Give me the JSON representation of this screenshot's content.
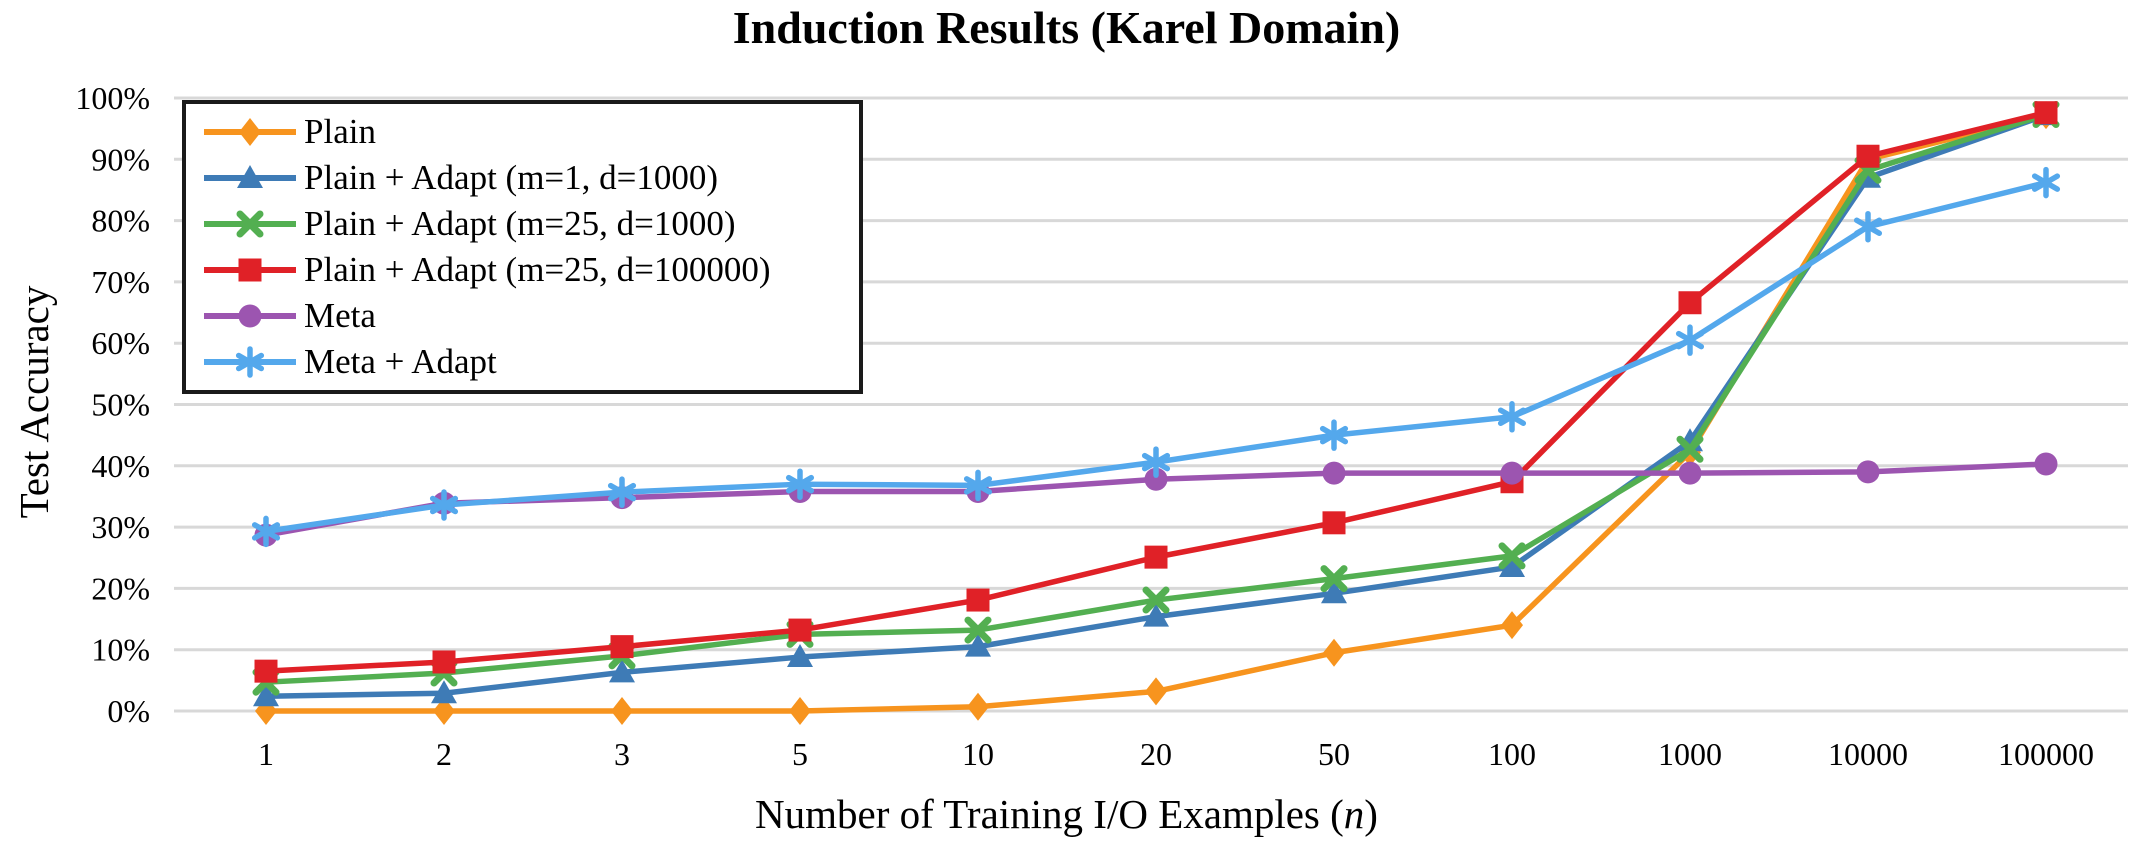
{
  "title": "Induction Results (Karel Domain)",
  "y_axis": {
    "label": "Test Accuracy",
    "ticks": [
      "100%",
      "90%",
      "80%",
      "70%",
      "60%",
      "50%",
      "40%",
      "30%",
      "20%",
      "10%",
      "0%"
    ]
  },
  "x_axis": {
    "label_prefix": "Number of Training I/O Examples (",
    "label_var": "n",
    "label_suffix": ")",
    "ticks": [
      "1",
      "2",
      "3",
      "5",
      "10",
      "20",
      "50",
      "100",
      "1000",
      "10000",
      "100000"
    ]
  },
  "colors": {
    "gridline": "#D8D8D8",
    "legend_border": "#1A1A1A",
    "background": "#FFFFFF",
    "text": "#000000"
  },
  "chart_data": {
    "type": "line",
    "title": "Induction Results (Karel Domain)",
    "xlabel": "Number of Training I/O Examples (n)",
    "ylabel": "Test Accuracy",
    "ylim": [
      0,
      100
    ],
    "y_unit": "%",
    "grid": "horizontal-only",
    "legend_position": "top-left",
    "x_spacing": "equal (log-like category axis)",
    "categories": [
      1,
      2,
      3,
      5,
      10,
      20,
      50,
      100,
      1000,
      10000,
      100000
    ],
    "series": [
      {
        "name": "Plain",
        "color": "#F7941E",
        "marker": "diamond",
        "values": [
          0,
          0,
          0,
          0,
          0.7,
          3.2,
          9.5,
          14.0,
          42.2,
          90.0,
          97.2
        ]
      },
      {
        "name": "Plain + Adapt (m=1, d=1000)",
        "color": "#3E7BB6",
        "marker": "triangle",
        "values": [
          2.4,
          2.9,
          6.3,
          8.8,
          10.5,
          15.4,
          19.2,
          23.5,
          44.0,
          87.0,
          97.2
        ]
      },
      {
        "name": "Plain + Adapt (m=25, d=1000)",
        "color": "#53AF51",
        "marker": "x",
        "values": [
          4.7,
          6.2,
          9.0,
          12.5,
          13.2,
          18.1,
          21.6,
          25.3,
          42.7,
          88.2,
          97.3
        ]
      },
      {
        "name": "Plain + Adapt (m=25, d=100000)",
        "color": "#E02127",
        "marker": "square",
        "values": [
          6.5,
          8.0,
          10.5,
          13.2,
          18.1,
          25.1,
          30.7,
          37.4,
          66.6,
          90.5,
          97.6
        ]
      },
      {
        "name": "Meta",
        "color": "#9C55B0",
        "marker": "circle",
        "values": [
          28.7,
          33.9,
          34.8,
          35.8,
          35.8,
          37.8,
          38.8,
          38.8,
          38.8,
          39.0,
          40.3
        ]
      },
      {
        "name": "Meta + Adapt",
        "color": "#54A8EC",
        "marker": "asterisk",
        "values": [
          29.3,
          33.6,
          35.7,
          37.0,
          36.8,
          40.6,
          45.0,
          48.0,
          60.5,
          79.0,
          86.2
        ]
      }
    ]
  }
}
